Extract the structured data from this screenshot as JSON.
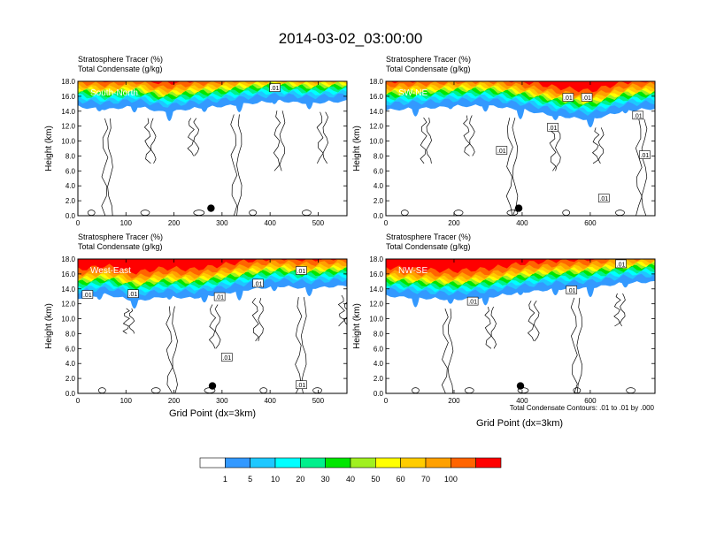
{
  "title": "2014-03-02_03:00:00",
  "panel_titles": [
    "Stratosphere Tracer   (%)",
    "Total Condensate   (g/kg)"
  ],
  "ylabel": "Height (km)",
  "xlabel": "Grid Point (dx=3km)",
  "contour_note": "Total Condensate Contours: .01 to .01 by .000",
  "colorbar": {
    "colors": [
      "#ffffff",
      "#3399ff",
      "#1ec8ff",
      "#00ffff",
      "#00f08c",
      "#00e600",
      "#a0f020",
      "#ffff00",
      "#ffcc00",
      "#ffa000",
      "#ff6400",
      "#ff0000"
    ],
    "labels": [
      "1",
      "5",
      "10",
      "20",
      "30",
      "40",
      "50",
      "60",
      "70",
      "100"
    ]
  },
  "chart_data": [
    {
      "type": "contour",
      "label": "South-North",
      "xlim": [
        0,
        560
      ],
      "xticks": [
        0,
        100,
        200,
        300,
        400,
        500
      ],
      "ylim": [
        0,
        18
      ],
      "yticks": [
        "0.0",
        "2.0",
        "4.0",
        "6.0",
        "8.0",
        "10.0",
        "12.0",
        "14.0",
        "16.0",
        "18.0"
      ],
      "marker": {
        "x": 277,
        "y": 1.0
      },
      "contour_labels": [
        {
          "x": 410,
          "y": 17.1,
          "text": ".01"
        }
      ],
      "tracer_base": [
        [
          0,
          14.8
        ],
        [
          60,
          14.5
        ],
        [
          120,
          14.9
        ],
        [
          180,
          14.1
        ],
        [
          240,
          14.6
        ],
        [
          300,
          14.9
        ],
        [
          360,
          15.3
        ],
        [
          420,
          15.6
        ],
        [
          480,
          15.3
        ],
        [
          560,
          15.6
        ]
      ]
    },
    {
      "type": "contour",
      "label": "SW-NE",
      "xlim": [
        0,
        790
      ],
      "xticks": [
        0,
        200,
        400,
        600
      ],
      "ylim": [
        0,
        18
      ],
      "yticks": [
        "0.0",
        "2.0",
        "4.0",
        "6.0",
        "8.0",
        "10.0",
        "12.0",
        "14.0",
        "16.0",
        "18.0"
      ],
      "marker": {
        "x": 390,
        "y": 1.0
      },
      "contour_labels": [
        {
          "x": 535,
          "y": 15.8,
          "text": ".01"
        },
        {
          "x": 590,
          "y": 15.8,
          "text": ".01"
        },
        {
          "x": 740,
          "y": 13.4,
          "text": ".01"
        },
        {
          "x": 490,
          "y": 11.8,
          "text": ".01"
        },
        {
          "x": 340,
          "y": 8.7,
          "text": ".01"
        },
        {
          "x": 760,
          "y": 8.1,
          "text": ".01"
        },
        {
          "x": 640,
          "y": 2.3,
          "text": ".01"
        }
      ],
      "tracer_base": [
        [
          0,
          14.4
        ],
        [
          100,
          14.6
        ],
        [
          200,
          14.9
        ],
        [
          300,
          15.0
        ],
        [
          400,
          14.4
        ],
        [
          500,
          13.6
        ],
        [
          600,
          13.1
        ],
        [
          700,
          14.3
        ],
        [
          790,
          14.6
        ]
      ]
    },
    {
      "type": "contour",
      "label": "West-East",
      "xlim": [
        0,
        560
      ],
      "xticks": [
        0,
        100,
        200,
        300,
        400,
        500
      ],
      "ylim": [
        0,
        18
      ],
      "yticks": [
        "0.0",
        "2.0",
        "4.0",
        "6.0",
        "8.0",
        "10.0",
        "12.0",
        "14.0",
        "16.0",
        "18.0"
      ],
      "marker": {
        "x": 280,
        "y": 1.0
      },
      "contour_labels": [
        {
          "x": 20,
          "y": 13.2,
          "text": ".01"
        },
        {
          "x": 115,
          "y": 13.3,
          "text": ".01"
        },
        {
          "x": 375,
          "y": 14.7,
          "text": ".01"
        },
        {
          "x": 465,
          "y": 16.4,
          "text": ".01"
        },
        {
          "x": 295,
          "y": 12.9,
          "text": ".01"
        },
        {
          "x": 310,
          "y": 4.8,
          "text": ".01"
        },
        {
          "x": 465,
          "y": 1.1,
          "text": ".01"
        }
      ],
      "tracer_base": [
        [
          0,
          13.0
        ],
        [
          60,
          13.5
        ],
        [
          120,
          12.6
        ],
        [
          180,
          13.2
        ],
        [
          240,
          13.0
        ],
        [
          300,
          13.6
        ],
        [
          360,
          14.2
        ],
        [
          420,
          14.6
        ],
        [
          480,
          14.3
        ],
        [
          560,
          14.7
        ]
      ]
    },
    {
      "type": "contour",
      "label": "NW-SE",
      "xlim": [
        0,
        790
      ],
      "xticks": [
        0,
        200,
        400,
        600
      ],
      "ylim": [
        0,
        18
      ],
      "yticks": [
        "0.0",
        "2.0",
        "4.0",
        "6.0",
        "8.0",
        "10.0",
        "12.0",
        "14.0",
        "16.0",
        "18.0"
      ],
      "marker": {
        "x": 395,
        "y": 1.0
      },
      "contour_labels": [
        {
          "x": 690,
          "y": 17.3,
          "text": ".01"
        },
        {
          "x": 545,
          "y": 13.8,
          "text": ".01"
        },
        {
          "x": 255,
          "y": 12.3,
          "text": ".01"
        }
      ],
      "tracer_base": [
        [
          0,
          13.3
        ],
        [
          100,
          13.0
        ],
        [
          200,
          12.8
        ],
        [
          300,
          13.1
        ],
        [
          400,
          13.8
        ],
        [
          500,
          14.2
        ],
        [
          600,
          14.4
        ],
        [
          700,
          15.0
        ],
        [
          790,
          15.2
        ]
      ]
    }
  ]
}
